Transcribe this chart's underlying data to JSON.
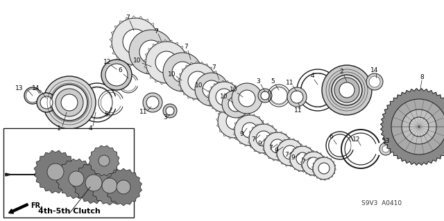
{
  "bg_color": "#ffffff",
  "fig_width": 6.4,
  "fig_height": 3.19,
  "dpi": 100,
  "line_color": "#1a1a1a",
  "text_color": "#000000",
  "part_font_size": 6.5,
  "subtitle": "S9V3  A0410"
}
